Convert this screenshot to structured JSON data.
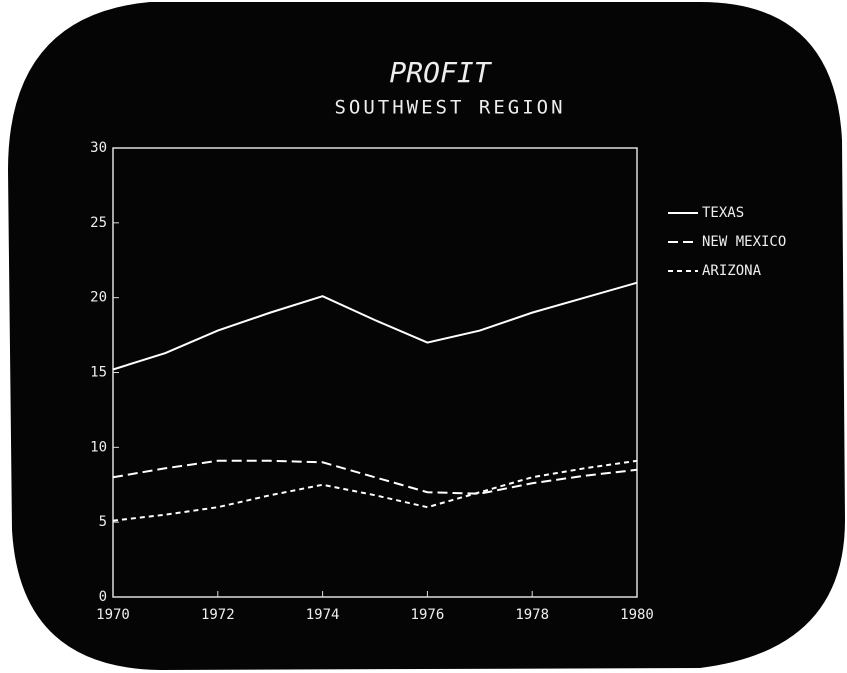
{
  "chart_data": {
    "type": "line",
    "title": "PROFIT",
    "subtitle": "SOUTHWEST REGION",
    "x": [
      1970,
      1971,
      1972,
      1973,
      1974,
      1975,
      1976,
      1977,
      1978,
      1979,
      1980
    ],
    "series": [
      {
        "name": "TEXAS",
        "color": "#ffffff",
        "style": "solid",
        "values": [
          15.2,
          16.3,
          17.8,
          19.0,
          20.1,
          18.5,
          17.0,
          17.8,
          19.0,
          20.0,
          21.0
        ]
      },
      {
        "name": "NEW MEXICO",
        "color": "#ffffff",
        "style": "dashed",
        "values": [
          8.0,
          8.6,
          9.1,
          9.1,
          9.0,
          8.0,
          7.0,
          6.9,
          7.6,
          8.1,
          8.5
        ]
      },
      {
        "name": "ARIZONA",
        "color": "#ffffff",
        "style": "dotted",
        "values": [
          5.1,
          5.5,
          6.0,
          6.8,
          7.5,
          6.8,
          6.0,
          7.0,
          8.0,
          8.6,
          9.1
        ]
      }
    ],
    "xlim": [
      1970,
      1980
    ],
    "xticks": [
      1970,
      1972,
      1974,
      1976,
      1978,
      1980
    ],
    "ylim": [
      0,
      30
    ],
    "yticks": [
      0,
      5,
      10,
      15,
      20,
      25,
      30
    ],
    "legend": "right"
  }
}
